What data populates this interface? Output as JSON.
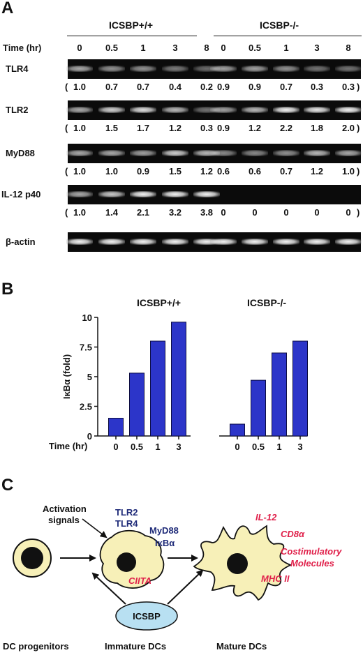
{
  "panel_a": {
    "letter": "A",
    "group_left": "ICSBP+/+",
    "group_right": "ICSBP-/-",
    "time_label": "Time (hr)",
    "times": [
      "0",
      "0.5",
      "1",
      "3",
      "8",
      "0",
      "0.5",
      "1",
      "3",
      "8"
    ],
    "rows": [
      {
        "gene": "TLR4",
        "values": [
          "1.0",
          "0.7",
          "0.7",
          "0.4",
          "0.2",
          "0.9",
          "0.9",
          "0.7",
          "0.3",
          "0.3"
        ]
      },
      {
        "gene": "TLR2",
        "values": [
          "1.0",
          "1.5",
          "1.7",
          "1.2",
          "0.3",
          "0.9",
          "1.2",
          "2.2",
          "1.8",
          "2.0"
        ]
      },
      {
        "gene": "MyD88",
        "values": [
          "1.0",
          "1.0",
          "0.9",
          "1.5",
          "1.2",
          "0.6",
          "0.6",
          "0.7",
          "1.2",
          "1.0"
        ]
      },
      {
        "gene": "IL-12 p40",
        "values": [
          "1.0",
          "1.4",
          "2.1",
          "3.2",
          "3.8",
          "0",
          "0",
          "0",
          "0",
          "0"
        ]
      },
      {
        "gene": "β-actin",
        "values": []
      }
    ],
    "paren_open": "(",
    "paren_close": ")"
  },
  "panel_b": {
    "letter": "B",
    "group_left": "ICSBP+/+",
    "group_right": "ICSBP-/-",
    "time_label": "Time (hr)"
  },
  "chart_data": {
    "type": "bar",
    "ylabel": "IκBα (fold)",
    "xlabel": "Time (hr)",
    "ylim": [
      0,
      10
    ],
    "yticks": [
      "0",
      "2.5",
      "5",
      "7.5",
      "10"
    ],
    "groups": [
      {
        "name": "ICSBP+/+",
        "categories": [
          "0",
          "0.5",
          "1",
          "3"
        ],
        "values": [
          1.5,
          5.3,
          8.0,
          9.6
        ]
      },
      {
        "name": "ICSBP-/-",
        "categories": [
          "0",
          "0.5",
          "1",
          "3"
        ],
        "values": [
          1.0,
          4.7,
          7.0,
          8.0
        ]
      }
    ],
    "bar_color": "#2c35c9"
  },
  "panel_c": {
    "letter": "C",
    "activation": [
      "Activation",
      "signals"
    ],
    "tlr": [
      "TLR2",
      "TLR4"
    ],
    "myd": [
      "MyD88",
      "IκBα"
    ],
    "mature_markers": [
      "IL-12",
      "CD8α",
      "Costimulatory",
      "Molecules",
      "MHC II"
    ],
    "ciita": "CIITA",
    "icsbp": "ICSBP",
    "stages": [
      "DC progenitors",
      "Immature DCs",
      "Mature DCs"
    ],
    "colors": {
      "navy": "#1e2a78",
      "red": "#e0204a",
      "cell": "#f7f0b8",
      "icsbp": "#b8e0f2"
    }
  }
}
